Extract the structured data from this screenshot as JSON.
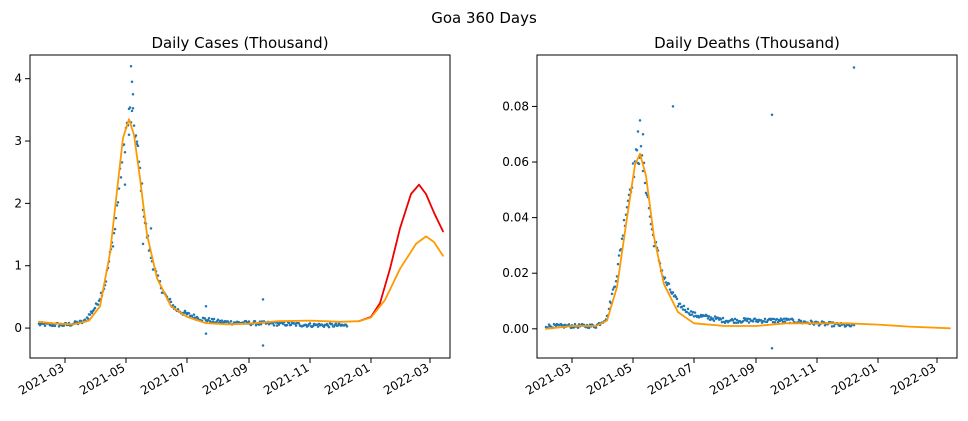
{
  "figure": {
    "suptitle": "Goa 360 Days"
  },
  "colors": {
    "scatter": "#1f77b4",
    "fit": "#ff9900",
    "projection": "#ee0000",
    "axis": "#000000"
  },
  "chart_data": [
    {
      "type": "scatter",
      "title": "Daily Cases (Thousand)",
      "xlabel": "",
      "ylabel": "",
      "x_range": [
        "2021-01-25",
        "2022-03-21"
      ],
      "ylim": [
        -0.48,
        4.38
      ],
      "x_ticks": [
        "2021-03-01",
        "2021-05-01",
        "2021-07-01",
        "2021-09-01",
        "2021-11-01",
        "2022-01-01",
        "2022-03-01"
      ],
      "x_tick_labels": [
        "2021-03",
        "2021-05",
        "2021-07",
        "2021-09",
        "2021-11",
        "2022-01",
        "2022-03"
      ],
      "y_ticks": [
        0,
        1,
        2,
        3,
        4
      ],
      "y_tick_labels": [
        "0",
        "1",
        "2",
        "3",
        "4"
      ],
      "scatter_range": [
        "2021-02-03",
        "2021-12-08"
      ],
      "scatter_baseline": [
        [
          "2021-02-03",
          0.06
        ],
        [
          "2021-03-01",
          0.05
        ],
        [
          "2021-03-20",
          0.1
        ],
        [
          "2021-04-01",
          0.35
        ],
        [
          "2021-04-10",
          0.7
        ],
        [
          "2021-04-20",
          1.6
        ],
        [
          "2021-04-25",
          2.4
        ],
        [
          "2021-05-01",
          3.15
        ],
        [
          "2021-05-05",
          3.45
        ],
        [
          "2021-05-10",
          3.2
        ],
        [
          "2021-05-15",
          2.5
        ],
        [
          "2021-05-20",
          1.7
        ],
        [
          "2021-05-25",
          1.2
        ],
        [
          "2021-06-01",
          0.8
        ],
        [
          "2021-06-10",
          0.5
        ],
        [
          "2021-06-20",
          0.3
        ],
        [
          "2021-07-01",
          0.22
        ],
        [
          "2021-07-15",
          0.15
        ],
        [
          "2021-08-01",
          0.1
        ],
        [
          "2021-09-01",
          0.08
        ],
        [
          "2021-10-01",
          0.07
        ],
        [
          "2021-11-01",
          0.05
        ],
        [
          "2021-12-08",
          0.04
        ]
      ],
      "scatter_outliers": [
        [
          "2021-05-06",
          4.2
        ],
        [
          "2021-05-07",
          3.95
        ],
        [
          "2021-05-08",
          3.75
        ],
        [
          "2021-05-04",
          3.1
        ],
        [
          "2021-05-12",
          2.95
        ],
        [
          "2021-05-18",
          1.35
        ],
        [
          "2021-05-26",
          1.6
        ],
        [
          "2021-04-30",
          2.3
        ],
        [
          "2021-07-20",
          -0.09
        ],
        [
          "2021-07-20",
          0.35
        ],
        [
          "2021-09-15",
          -0.28
        ],
        [
          "2021-09-15",
          0.46
        ]
      ],
      "series": [
        {
          "name": "",
          "color_key": "projection",
          "points": [
            [
              "2021-12-20",
              0.11
            ],
            [
              "2022-01-01",
              0.18
            ],
            [
              "2022-01-10",
              0.4
            ],
            [
              "2022-01-20",
              0.95
            ],
            [
              "2022-01-30",
              1.6
            ],
            [
              "2022-02-10",
              2.15
            ],
            [
              "2022-02-18",
              2.3
            ],
            [
              "2022-02-25",
              2.15
            ],
            [
              "2022-03-05",
              1.85
            ],
            [
              "2022-03-14",
              1.55
            ]
          ]
        },
        {
          "name": "",
          "color_key": "fit",
          "points": [
            [
              "2021-02-03",
              0.1
            ],
            [
              "2021-02-20",
              0.07
            ],
            [
              "2021-03-10",
              0.06
            ],
            [
              "2021-03-25",
              0.12
            ],
            [
              "2021-04-05",
              0.35
            ],
            [
              "2021-04-15",
              1.2
            ],
            [
              "2021-04-22",
              2.2
            ],
            [
              "2021-04-28",
              3.05
            ],
            [
              "2021-05-04",
              3.35
            ],
            [
              "2021-05-09",
              3.1
            ],
            [
              "2021-05-15",
              2.4
            ],
            [
              "2021-05-22",
              1.5
            ],
            [
              "2021-06-01",
              0.8
            ],
            [
              "2021-06-15",
              0.35
            ],
            [
              "2021-07-01",
              0.18
            ],
            [
              "2021-07-20",
              0.08
            ],
            [
              "2021-08-10",
              0.06
            ],
            [
              "2021-09-01",
              0.07
            ],
            [
              "2021-10-01",
              0.11
            ],
            [
              "2021-11-01",
              0.12
            ],
            [
              "2021-12-01",
              0.1
            ],
            [
              "2021-12-20",
              0.11
            ],
            [
              "2022-01-01",
              0.17
            ],
            [
              "2022-01-15",
              0.45
            ],
            [
              "2022-01-30",
              0.95
            ],
            [
              "2022-02-15",
              1.35
            ],
            [
              "2022-02-25",
              1.47
            ],
            [
              "2022-03-05",
              1.38
            ],
            [
              "2022-03-14",
              1.16
            ]
          ]
        }
      ]
    },
    {
      "type": "scatter",
      "title": "Daily Deaths (Thousand)",
      "xlabel": "",
      "ylabel": "",
      "x_range": [
        "2021-01-25",
        "2022-03-21"
      ],
      "ylim": [
        -0.0105,
        0.0985
      ],
      "x_ticks": [
        "2021-03-01",
        "2021-05-01",
        "2021-07-01",
        "2021-09-01",
        "2021-11-01",
        "2022-01-01",
        "2022-03-01"
      ],
      "x_tick_labels": [
        "2021-03",
        "2021-05",
        "2021-07",
        "2021-09",
        "2021-11",
        "2022-01",
        "2022-03"
      ],
      "y_ticks": [
        0,
        0.02,
        0.04,
        0.06,
        0.08
      ],
      "y_tick_labels": [
        "0.00",
        "0.02",
        "0.04",
        "0.06",
        "0.08"
      ],
      "scatter_range": [
        "2021-02-03",
        "2021-12-08"
      ],
      "scatter_baseline": [
        [
          "2021-02-03",
          0.001
        ],
        [
          "2021-03-01",
          0.001
        ],
        [
          "2021-03-25",
          0.001
        ],
        [
          "2021-04-05",
          0.004
        ],
        [
          "2021-04-15",
          0.02
        ],
        [
          "2021-04-25",
          0.045
        ],
        [
          "2021-05-03",
          0.06
        ],
        [
          "2021-05-08",
          0.064
        ],
        [
          "2021-05-14",
          0.052
        ],
        [
          "2021-05-20",
          0.035
        ],
        [
          "2021-06-01",
          0.018
        ],
        [
          "2021-06-15",
          0.009
        ],
        [
          "2021-07-01",
          0.005
        ],
        [
          "2021-08-01",
          0.003
        ],
        [
          "2021-09-01",
          0.003
        ],
        [
          "2021-10-01",
          0.003
        ],
        [
          "2021-11-01",
          0.002
        ],
        [
          "2021-12-08",
          0.001
        ]
      ],
      "scatter_outliers": [
        [
          "2021-05-08",
          0.075
        ],
        [
          "2021-05-06",
          0.071
        ],
        [
          "2021-06-10",
          0.08
        ],
        [
          "2021-09-17",
          0.077
        ],
        [
          "2021-09-17",
          -0.007
        ],
        [
          "2021-12-08",
          0.094
        ],
        [
          "2021-05-11",
          0.07
        ]
      ],
      "series": [
        {
          "name": "",
          "color_key": "fit",
          "points": [
            [
              "2021-02-03",
              0.0
            ],
            [
              "2021-03-01",
              0.001
            ],
            [
              "2021-03-25",
              0.001
            ],
            [
              "2021-04-05",
              0.003
            ],
            [
              "2021-04-15",
              0.015
            ],
            [
              "2021-04-25",
              0.04
            ],
            [
              "2021-05-03",
              0.059
            ],
            [
              "2021-05-08",
              0.063
            ],
            [
              "2021-05-14",
              0.055
            ],
            [
              "2021-05-22",
              0.033
            ],
            [
              "2021-06-01",
              0.016
            ],
            [
              "2021-06-15",
              0.006
            ],
            [
              "2021-07-01",
              0.002
            ],
            [
              "2021-08-01",
              0.001
            ],
            [
              "2021-09-01",
              0.001
            ],
            [
              "2021-10-01",
              0.002
            ],
            [
              "2021-11-01",
              0.002
            ],
            [
              "2021-12-01",
              0.002
            ],
            [
              "2022-01-01",
              0.0015
            ],
            [
              "2022-02-01",
              0.0008
            ],
            [
              "2022-03-14",
              0.0002
            ]
          ]
        }
      ]
    }
  ]
}
